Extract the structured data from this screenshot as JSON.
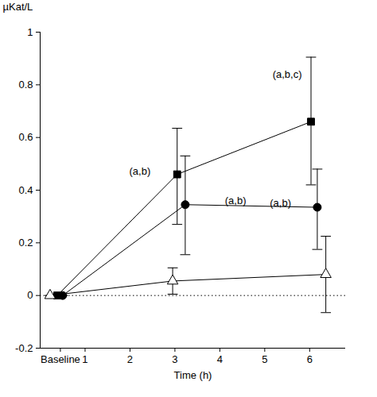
{
  "chart_data": {
    "type": "line",
    "y_label": "µKat/L",
    "x_label": "Time (h)",
    "xlim": [
      0,
      6.8
    ],
    "xticks": [
      {
        "value": 0.45,
        "label": "Baseline"
      },
      1,
      2,
      3,
      4,
      5,
      6
    ],
    "ylim": [
      -0.2,
      1
    ],
    "yticks": [
      -0.2,
      0,
      0.2,
      0.4,
      0.6,
      0.8,
      1
    ],
    "grid": false,
    "series": [
      {
        "marker": "square",
        "color": "#000000",
        "line_style": "solid",
        "x": [
          0.38,
          3.05,
          6.03
        ],
        "values": [
          0,
          0.46,
          0.66
        ],
        "error_low": [
          0,
          0.27,
          0.42
        ],
        "error_high": [
          0,
          0.635,
          0.905
        ]
      },
      {
        "marker": "circle",
        "color": "#000000",
        "line_style": "solid",
        "x": [
          0.5,
          3.23,
          6.17
        ],
        "values": [
          0,
          0.345,
          0.335
        ],
        "error_low": [
          0,
          0.155,
          0.175
        ],
        "error_high": [
          0,
          0.53,
          0.48
        ]
      },
      {
        "marker": "triangle-open",
        "color": "#000000",
        "line_style": "solid",
        "x": [
          0.22,
          2.95,
          6.36
        ],
        "values": [
          0,
          0.055,
          0.08
        ],
        "error_low": [
          0,
          0.005,
          -0.065
        ],
        "error_high": [
          0,
          0.105,
          0.225
        ]
      }
    ],
    "annotations": [
      {
        "text": "(a,b)",
        "x": 2.22,
        "y": 0.47
      },
      {
        "text": "(a,b)",
        "x": 4.35,
        "y": 0.36
      },
      {
        "text": "(a,b,c)",
        "x": 5.5,
        "y": 0.84
      },
      {
        "text": "(a,b)",
        "x": 5.35,
        "y": 0.35
      }
    ],
    "reference_line": {
      "y": 0,
      "line_style": "dotted"
    }
  }
}
